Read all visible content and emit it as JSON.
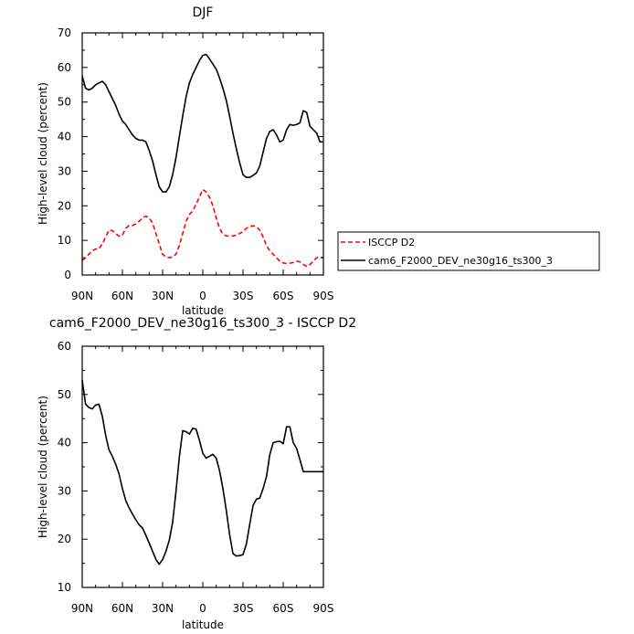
{
  "chart_data": [
    {
      "type": "line",
      "title": "DJF",
      "xlabel": "latitude",
      "ylabel": "High-level cloud (percent)",
      "xlim": [
        90,
        -90
      ],
      "ylim": [
        0,
        70
      ],
      "x_ticks": [
        90,
        60,
        30,
        0,
        -30,
        -60,
        -90
      ],
      "x_tick_labels": [
        "90N",
        "60N",
        "30N",
        "0",
        "30S",
        "60S",
        "90S"
      ],
      "y_ticks": [
        0,
        10,
        20,
        30,
        40,
        50,
        60,
        70
      ],
      "grid": false,
      "legend": {
        "placement": "outside-right",
        "entries": [
          "ISCCP D2",
          "cam6_F2000_DEV_ne30g16_ts300_3"
        ]
      },
      "series": [
        {
          "name": "ISCCP D2",
          "color": "#ff0000",
          "dash": "dashed",
          "x": [
            90,
            87.5,
            85,
            82.5,
            80,
            77.5,
            75,
            72.5,
            70,
            67.5,
            65,
            62.5,
            60,
            57.5,
            55,
            52.5,
            50,
            47.5,
            45,
            42.5,
            40,
            37.5,
            35,
            32.5,
            30,
            27.5,
            25,
            22.5,
            20,
            17.5,
            15,
            12.5,
            10,
            7.5,
            5,
            2.5,
            0,
            -2.5,
            -5,
            -7.5,
            -10,
            -12.5,
            -15,
            -17.5,
            -20,
            -22.5,
            -25,
            -27.5,
            -30,
            -32.5,
            -35,
            -37.5,
            -40,
            -42.5,
            -45,
            -47.5,
            -50,
            -52.5,
            -55,
            -57.5,
            -60,
            -62.5,
            -65,
            -67.5,
            -70,
            -72.5,
            -75,
            -77.5,
            -80,
            -82.5,
            -85,
            -87.5,
            -90
          ],
          "values": [
            4.2,
            5.0,
            6.0,
            7.0,
            7.5,
            7.5,
            9.0,
            11.0,
            13.0,
            12.8,
            12.0,
            11.2,
            11.5,
            13.5,
            14.3,
            14.3,
            14.8,
            15.5,
            16.5,
            17.0,
            16.5,
            15.0,
            12.0,
            9.0,
            6.0,
            5.2,
            5.0,
            5.2,
            6.0,
            8.5,
            12.0,
            15.5,
            17.5,
            18.5,
            20.5,
            22.5,
            24.7,
            24.0,
            22.5,
            20.0,
            16.5,
            13.5,
            11.8,
            11.3,
            11.2,
            11.3,
            11.5,
            12.0,
            12.5,
            13.5,
            14.0,
            14.2,
            14.0,
            13.0,
            11.0,
            8.5,
            7.0,
            6.0,
            5.0,
            4.0,
            3.5,
            3.3,
            3.4,
            3.6,
            4.0,
            3.8,
            3.0,
            2.5,
            3.0,
            4.0,
            5.0,
            5.0,
            5.0
          ]
        },
        {
          "name": "cam6_F2000_DEV_ne30g16_ts300_3",
          "color": "#000000",
          "dash": "solid",
          "x": [
            90,
            87.5,
            85,
            82.5,
            80,
            77.5,
            75,
            72.5,
            70,
            67.5,
            65,
            62.5,
            60,
            57.5,
            55,
            52.5,
            50,
            47.5,
            45,
            42.5,
            40,
            37.5,
            35,
            32.5,
            30,
            27.5,
            25,
            22.5,
            20,
            17.5,
            15,
            12.5,
            10,
            7.5,
            5,
            2.5,
            0,
            -2.5,
            -5,
            -7.5,
            -10,
            -12.5,
            -15,
            -17.5,
            -20,
            -22.5,
            -25,
            -27.5,
            -30,
            -32.5,
            -35,
            -37.5,
            -40,
            -42.5,
            -45,
            -47.5,
            -50,
            -52.5,
            -55,
            -57.5,
            -60,
            -62.5,
            -65,
            -67.5,
            -70,
            -72.5,
            -75,
            -77.5,
            -80,
            -82.5,
            -85,
            -87.5,
            -90
          ],
          "values": [
            57.5,
            54.0,
            53.5,
            54.0,
            55.0,
            55.5,
            56.0,
            55.0,
            53.0,
            51.0,
            49.0,
            46.5,
            44.5,
            43.5,
            42.0,
            40.5,
            39.5,
            39.0,
            39.0,
            38.5,
            36.0,
            33.0,
            29.0,
            25.5,
            24.0,
            24.0,
            25.5,
            29.0,
            34.0,
            40.0,
            46.0,
            51.5,
            55.5,
            58.0,
            60.0,
            62.0,
            63.5,
            63.8,
            62.5,
            61.0,
            59.5,
            57.0,
            54.0,
            50.5,
            46.0,
            41.0,
            36.5,
            32.5,
            29.0,
            28.2,
            28.2,
            28.8,
            29.5,
            31.5,
            35.5,
            39.5,
            41.5,
            42.0,
            40.5,
            38.5,
            39.0,
            42.0,
            43.5,
            43.3,
            43.5,
            44.0,
            47.5,
            47.0,
            43.0,
            42.0,
            41.0,
            38.5,
            38.5
          ]
        }
      ]
    },
    {
      "type": "line",
      "title": "cam6_F2000_DEV_ne30g16_ts300_3 - ISCCP D2",
      "xlabel": "latitude",
      "ylabel": "High-level cloud (percent)",
      "xlim": [
        90,
        -90
      ],
      "ylim": [
        10,
        60
      ],
      "x_ticks": [
        90,
        60,
        30,
        0,
        -30,
        -60,
        -90
      ],
      "x_tick_labels": [
        "90N",
        "60N",
        "30N",
        "0",
        "30S",
        "60S",
        "90S"
      ],
      "y_ticks": [
        10,
        20,
        30,
        40,
        50,
        60
      ],
      "grid": false,
      "series": [
        {
          "color": "#000000",
          "dash": "solid",
          "x": [
            90,
            87.5,
            85,
            82.5,
            80,
            77.5,
            75,
            72.5,
            70,
            67.5,
            65,
            62.5,
            60,
            57.5,
            55,
            52.5,
            50,
            47.5,
            45,
            42.5,
            40,
            37.5,
            35,
            32.5,
            30,
            27.5,
            25,
            22.5,
            20,
            17.5,
            15,
            12.5,
            10,
            7.5,
            5,
            2.5,
            0,
            -2.5,
            -5,
            -7.5,
            -10,
            -12.5,
            -15,
            -17.5,
            -20,
            -22.5,
            -25,
            -27.5,
            -30,
            -32.5,
            -35,
            -37.5,
            -40,
            -42.5,
            -45,
            -47.5,
            -50,
            -52.5,
            -55,
            -57.5,
            -60,
            -62.5,
            -65,
            -67.5,
            -70,
            -72.5,
            -75,
            -77.5,
            -80,
            -82.5,
            -85,
            -87.5,
            -90
          ],
          "values": [
            53.0,
            48.0,
            47.3,
            47.0,
            47.8,
            48.0,
            45.5,
            41.5,
            38.5,
            37.2,
            35.5,
            33.5,
            30.5,
            28.0,
            26.5,
            25.2,
            24.0,
            23.0,
            22.3,
            20.8,
            19.2,
            17.5,
            15.8,
            14.8,
            15.8,
            17.5,
            19.8,
            23.5,
            30.0,
            37.0,
            42.5,
            42.3,
            41.8,
            43.0,
            42.8,
            40.5,
            37.8,
            36.8,
            37.2,
            37.6,
            36.8,
            34.2,
            30.5,
            26.0,
            21.0,
            17.0,
            16.5,
            16.6,
            16.8,
            19.0,
            23.0,
            27.0,
            28.3,
            28.5,
            30.5,
            33.0,
            37.5,
            40.0,
            40.2,
            40.3,
            39.8,
            43.3,
            43.3,
            40.0,
            38.8,
            36.5,
            34.0,
            34.0,
            34.0,
            34.0,
            34.0,
            34.0,
            34.0
          ]
        }
      ]
    }
  ]
}
